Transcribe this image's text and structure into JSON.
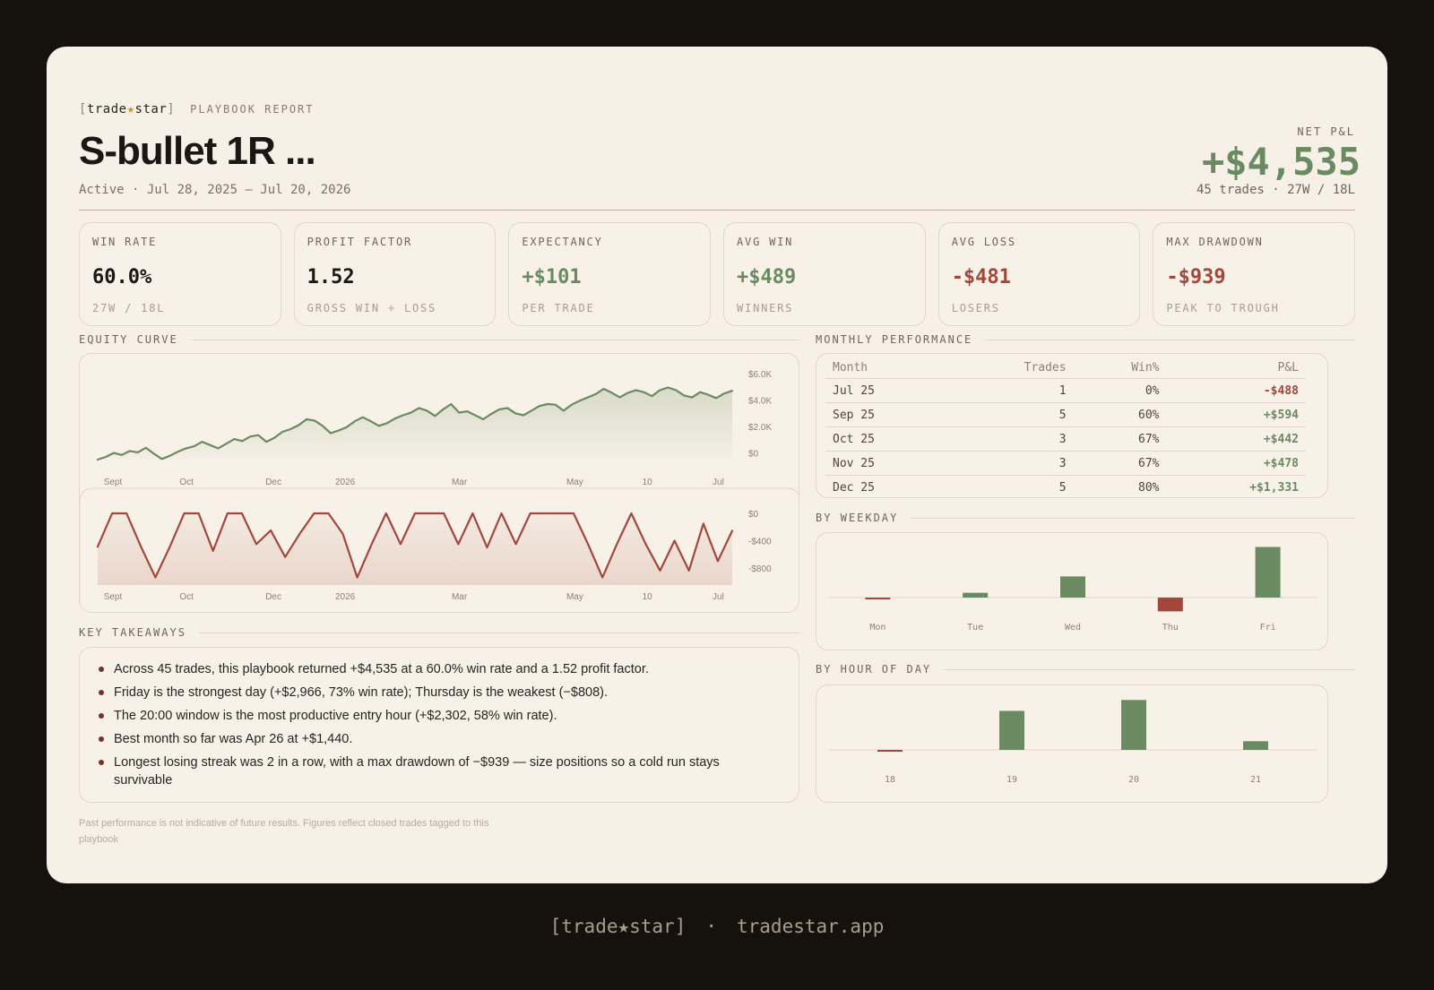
{
  "brand": {
    "open": "[",
    "name_a": "trade",
    "star": "★",
    "name_b": "star",
    "close": "]",
    "report_label": "PLAYBOOK REPORT"
  },
  "header": {
    "title": "S-bullet 1R ...",
    "subtitle": "Active · Jul 28, 2025 – Jul 20, 2026",
    "net_label": "NET P&L",
    "net_value": "+$4,535",
    "net_sub": "45 trades · 27W / 18L"
  },
  "metrics": [
    {
      "label": "WIN RATE",
      "value": "60.0%",
      "note": "27W / 18L",
      "tone": "neutral"
    },
    {
      "label": "PROFIT FACTOR",
      "value": "1.52",
      "note": "GROSS WIN ÷ LOSS",
      "tone": "neutral"
    },
    {
      "label": "EXPECTANCY",
      "value": "+$101",
      "note": "PER TRADE",
      "tone": "pos"
    },
    {
      "label": "AVG WIN",
      "value": "+$489",
      "note": "WINNERS",
      "tone": "pos"
    },
    {
      "label": "AVG LOSS",
      "value": "-$481",
      "note": "LOSERS",
      "tone": "neg"
    },
    {
      "label": "MAX DRAWDOWN",
      "value": "-$939",
      "note": "PEAK TO TROUGH",
      "tone": "neg"
    }
  ],
  "sections": {
    "equity": "EQUITY CURVE",
    "monthly": "MONTHLY PERFORMANCE",
    "weekday": "BY WEEKDAY",
    "hour": "BY HOUR OF DAY",
    "takeaways": "KEY TAKEAWAYS"
  },
  "monthly": {
    "headers": [
      "Month",
      "Trades",
      "Win%",
      "P&L"
    ],
    "rows": [
      {
        "month": "Jul 25",
        "trades": "1",
        "win": "0%",
        "pnl": "-$488",
        "tone": "neg"
      },
      {
        "month": "Sep 25",
        "trades": "5",
        "win": "60%",
        "pnl": "+$594",
        "tone": "pos"
      },
      {
        "month": "Oct 25",
        "trades": "3",
        "win": "67%",
        "pnl": "+$442",
        "tone": "pos"
      },
      {
        "month": "Nov 25",
        "trades": "3",
        "win": "67%",
        "pnl": "+$478",
        "tone": "pos"
      },
      {
        "month": "Dec 25",
        "trades": "5",
        "win": "80%",
        "pnl": "+$1,331",
        "tone": "pos"
      }
    ]
  },
  "takeaways": [
    "Across 45 trades, this playbook returned +$4,535 at a 60.0% win rate and a 1.52 profit factor.",
    "Friday is the strongest day (+$2,966, 73% win rate); Thursday is the weakest (−$808).",
    "The 20:00 window is the most productive entry hour (+$2,302, 58% win rate).",
    "Best month so far was Apr 26 at +$1,440.",
    "Longest losing streak was 2 in a row, with a max drawdown of −$939 — size positions so a cold run stays survivable"
  ],
  "disclaimer": "Past performance is not indicative of future results. Figures reflect closed trades tagged to this playbook",
  "footer": {
    "brand": "[trade★star]",
    "sep": "·",
    "url": "tradestar.app"
  },
  "colors": {
    "positive": "#6a8a62",
    "negative": "#a3473c",
    "background": "#f6f0e6",
    "frame": "#15110d"
  },
  "chart_data": [
    {
      "type": "area",
      "title": "",
      "x_ticks": [
        "Sept",
        "Oct",
        "Dec",
        "2026",
        "Mar",
        "May",
        "10",
        "Jul"
      ],
      "y_ticks": [
        "$6.0K",
        "$4.0K",
        "$2.0K",
        "$0"
      ],
      "ylim": [
        -500,
        6000
      ],
      "series": [
        {
          "values": [
            -500,
            -300,
            0,
            -150,
            150,
            50,
            400,
            -50,
            -450,
            -200,
            100,
            350,
            500,
            850,
            600,
            350,
            700,
            1050,
            900,
            1250,
            1350,
            850,
            1150,
            1600,
            1800,
            2100,
            2550,
            2450,
            2050,
            1500,
            1700,
            1950,
            2400,
            2700,
            2400,
            2050,
            2250,
            2600,
            2850,
            3050,
            3400,
            3200,
            2800,
            3300,
            3700,
            3050,
            3150,
            2850,
            2550,
            2950,
            3300,
            3400,
            3000,
            2850,
            3200,
            3550,
            3700,
            3650,
            3200,
            3650,
            3950,
            4200,
            4450,
            4850,
            4550,
            4200,
            4550,
            4750,
            4600,
            4300,
            4750,
            4950,
            4750,
            4350,
            4200,
            4600,
            4400,
            4150,
            4500,
            4700
          ]
        }
      ]
    },
    {
      "type": "area",
      "title": "",
      "x_ticks": [
        "Sept",
        "Oct",
        "Dec",
        "2026",
        "Mar",
        "May",
        "10",
        "Jul"
      ],
      "y_ticks": [
        "$0",
        "-$400",
        "-$800"
      ],
      "ylim": [
        -1050,
        0
      ],
      "series": [
        {
          "values": [
            -488,
            0,
            0,
            -488,
            -939,
            -488,
            0,
            0,
            -550,
            0,
            0,
            -450,
            -250,
            -639,
            -300,
            0,
            0,
            -300,
            -939,
            -450,
            0,
            -450,
            0,
            0,
            0,
            -450,
            0,
            -500,
            0,
            -450,
            0,
            0,
            0,
            0,
            -450,
            -939,
            -450,
            0,
            -450,
            -839,
            -400,
            -839,
            -150,
            -700,
            -255
          ]
        }
      ]
    },
    {
      "type": "bar",
      "title": "",
      "categories": [
        "Mon",
        "Tue",
        "Wed",
        "Thu",
        "Fri"
      ],
      "values": [
        -60,
        280,
        1240,
        -808,
        2966
      ]
    },
    {
      "type": "bar",
      "title": "",
      "categories": [
        "18",
        "19",
        "20",
        "21"
      ],
      "values": [
        -20,
        1800,
        2302,
        400
      ]
    }
  ]
}
